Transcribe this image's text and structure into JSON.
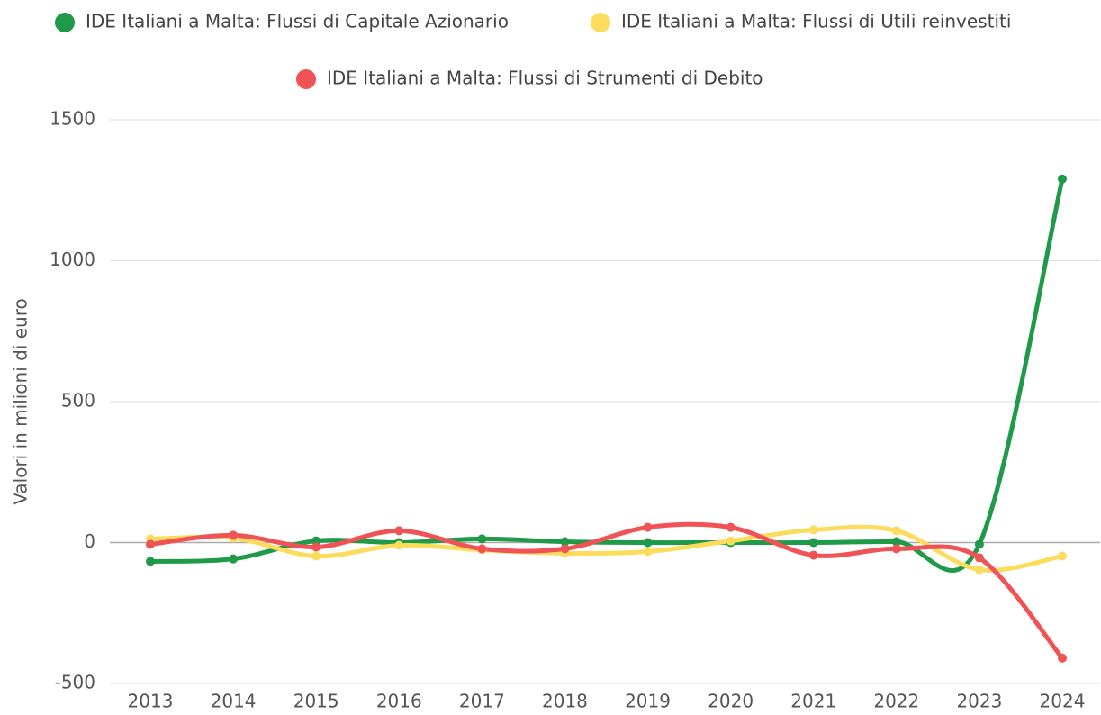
{
  "chart_data": {
    "type": "line",
    "y_label": "Valori in milioni di euro",
    "categories": [
      "2013",
      "2014",
      "2015",
      "2016",
      "2017",
      "2018",
      "2019",
      "2020",
      "2021",
      "2022",
      "2023",
      "2024"
    ],
    "series": [
      {
        "name": "IDE Italiani a Malta: Flussi di Capitale Azionario",
        "color": "#1e9a48",
        "values": [
          -67,
          -58,
          6,
          0,
          13,
          3,
          0,
          0,
          0,
          3,
          -6,
          1290
        ]
      },
      {
        "name": "IDE Italiani a Malta: Flussi di Utili reinvestiti",
        "color": "#fbdc5c",
        "values": [
          13,
          16,
          -48,
          -10,
          -26,
          -38,
          -32,
          6,
          45,
          42,
          -96,
          -48
        ]
      },
      {
        "name": "IDE Italiani a Malta: Flussi di Strumenti di Debito",
        "color": "#f05356",
        "values": [
          -6,
          26,
          -16,
          42,
          -22,
          -22,
          54,
          54,
          -45,
          -22,
          -54,
          -410
        ]
      }
    ],
    "ylim": [
      -500,
      1500
    ],
    "yticks": [
      -500,
      0,
      500,
      1000,
      1500
    ],
    "grid": true,
    "smooth": true
  }
}
